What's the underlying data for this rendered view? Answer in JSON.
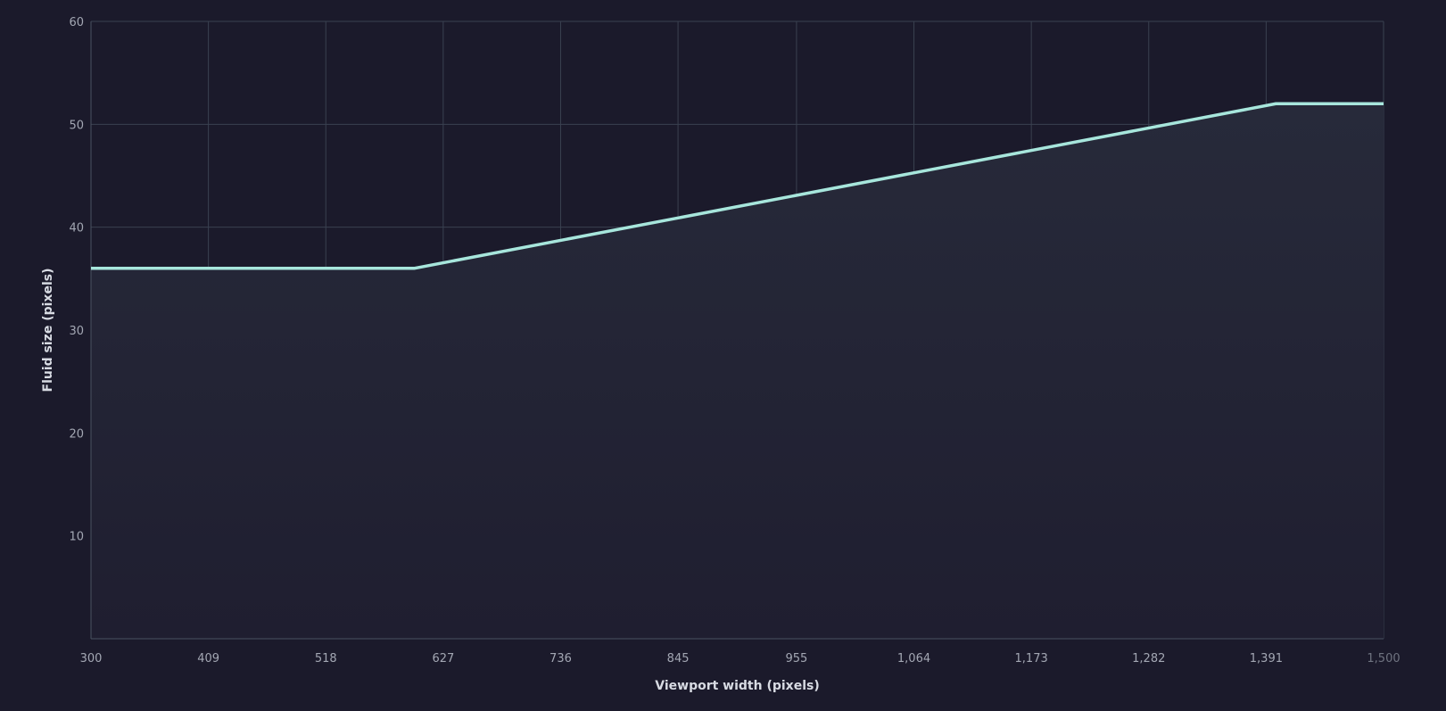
{
  "chart_data": {
    "type": "line",
    "title": "",
    "xlabel": "Viewport width (pixels)",
    "ylabel": "Fluid size (pixels)",
    "xlim": [
      300,
      1500
    ],
    "ylim": [
      0,
      60
    ],
    "x_ticks": [
      300,
      409,
      518,
      627,
      736,
      845,
      955,
      1064,
      1173,
      1282,
      1391,
      1500
    ],
    "x_tick_labels": [
      "300",
      "409",
      "518",
      "627",
      "736",
      "845",
      "955",
      "1,064",
      "1,173",
      "1,282",
      "1,391",
      "1,500"
    ],
    "y_ticks": [
      10,
      20,
      30,
      40,
      50,
      60
    ],
    "y_tick_labels": [
      "10",
      "20",
      "30",
      "40",
      "50",
      "60"
    ],
    "grid": true,
    "area_fill": true,
    "series": [
      {
        "x": [
          300,
          600,
          1400,
          1500
        ],
        "y": [
          36,
          36,
          52,
          52
        ]
      }
    ],
    "colors": {
      "background": "#1b1a2b",
      "line": "#a7e6dc",
      "grid": "#3a4150",
      "area_top": "#272a3a",
      "area_bottom": "#1f1e30"
    }
  }
}
